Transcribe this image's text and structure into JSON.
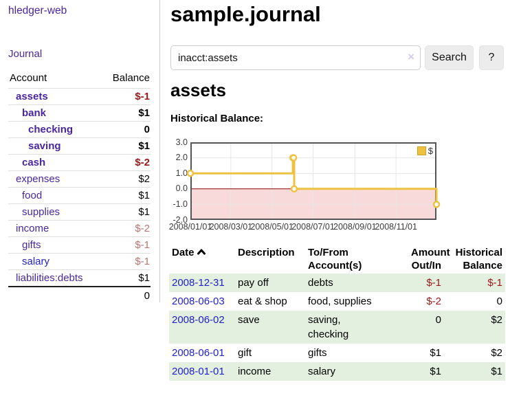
{
  "app": {
    "title": "hledger-web"
  },
  "sidebar": {
    "nav": {
      "journal_label": "Journal"
    },
    "headers": {
      "account": "Account",
      "balance": "Balance"
    },
    "accounts": [
      {
        "name": "assets",
        "depth": 1,
        "balance": "$-1",
        "strong": true
      },
      {
        "name": "bank",
        "depth": 2,
        "balance": "$1",
        "strong": true
      },
      {
        "name": "checking",
        "depth": 3,
        "balance": "0",
        "strong": true
      },
      {
        "name": "saving",
        "depth": 3,
        "balance": "$1",
        "strong": true
      },
      {
        "name": "cash",
        "depth": 2,
        "balance": "$-2",
        "strong": true
      },
      {
        "name": "expenses",
        "depth": 1,
        "balance": "$2",
        "strong": false
      },
      {
        "name": "food",
        "depth": 2,
        "balance": "$1",
        "strong": false
      },
      {
        "name": "supplies",
        "depth": 2,
        "balance": "$1",
        "strong": false
      },
      {
        "name": "income",
        "depth": 1,
        "balance": "$-2",
        "strong": false
      },
      {
        "name": "gifts",
        "depth": 2,
        "balance": "$-1",
        "strong": false
      },
      {
        "name": "salary",
        "depth": 2,
        "balance": "$-1",
        "strong": false,
        "blue_link": true
      },
      {
        "name": "liabilities:debts",
        "depth": 1,
        "balance": "$1",
        "strong": false
      }
    ],
    "total": "0"
  },
  "header": {
    "title": "sample.journal"
  },
  "search": {
    "value": "inacct:assets",
    "clear_icon": "×",
    "search_button": "Search",
    "help_button": "?"
  },
  "account_page": {
    "title": "assets",
    "chart_label": "Historical Balance:"
  },
  "chart_data": {
    "type": "line",
    "step": true,
    "title": "Historical Balance:",
    "series": [
      {
        "name": "$",
        "color": "#edc240",
        "points": [
          [
            "2008-01-01",
            1
          ],
          [
            "2008-06-01",
            2
          ],
          [
            "2008-06-02",
            2
          ],
          [
            "2008-06-03",
            0
          ],
          [
            "2008-12-31",
            -1
          ]
        ]
      }
    ],
    "ylim": [
      -2,
      3
    ],
    "yticks": [
      3.0,
      2.0,
      1.0,
      0.0,
      -1.0,
      -2.0
    ],
    "xlim": [
      "2008-01-01",
      "2008-12-31"
    ],
    "xticks": [
      "2008/01/01",
      "2008/03/01",
      "2008/05/01",
      "2008/07/01",
      "2008/09/01",
      "2008/11/01"
    ],
    "legend": {
      "label": "$",
      "position": "top-right"
    },
    "grid": true,
    "negative_region_color": "#f9dada",
    "zero_line_color": "#8b0000",
    "border_color": "#545454",
    "grid_color": "#e6e6e6"
  },
  "register": {
    "headers": {
      "date": "Date",
      "description": "Description",
      "accounts": "To/From\nAccount(s)",
      "amount": "Amount\nOut/In",
      "balance": "Historical\nBalance"
    },
    "sort_icon": "chevron-up",
    "rows": [
      {
        "date": "2008-12-31",
        "description": "pay off",
        "accounts": "debts",
        "amount": "$-1",
        "balance": "$-1"
      },
      {
        "date": "2008-06-03",
        "description": "eat & shop",
        "accounts": "food, supplies",
        "amount": "$-2",
        "balance": "0"
      },
      {
        "date": "2008-06-02",
        "description": "save",
        "accounts": "saving,\nchecking",
        "amount": "0",
        "balance": "$2"
      },
      {
        "date": "2008-06-01",
        "description": "gift",
        "accounts": "gifts",
        "amount": "$1",
        "balance": "$2"
      },
      {
        "date": "2008-01-01",
        "description": "income",
        "accounts": "salary",
        "amount": "$1",
        "balance": "$1"
      }
    ]
  },
  "colors": {
    "link_purple": "#4a26a0",
    "link_blue": "#2222cc",
    "negative_strong": "#9d1717",
    "negative_muted": "#b97474",
    "row_shade_green": "#e3efdf",
    "series_gold": "#edc240"
  }
}
